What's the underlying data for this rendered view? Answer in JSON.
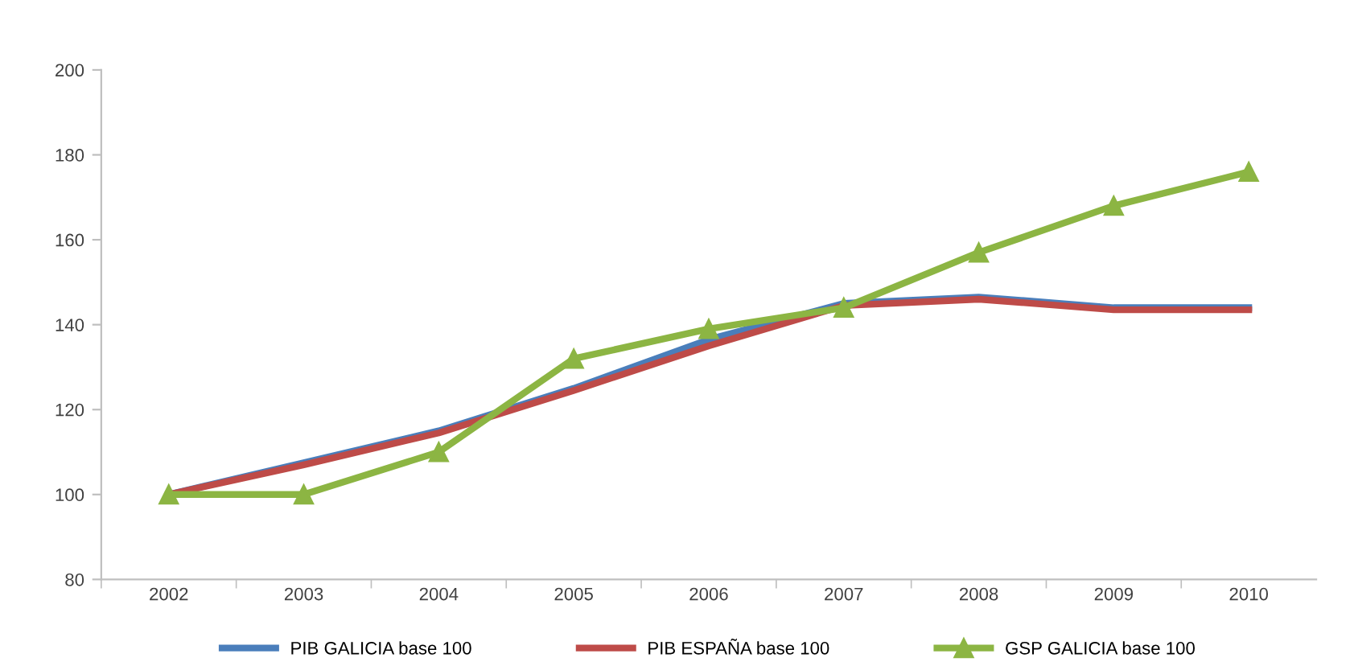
{
  "chart_data": {
    "type": "line",
    "categories": [
      "2002",
      "2003",
      "2004",
      "2005",
      "2006",
      "2007",
      "2008",
      "2009",
      "2010"
    ],
    "series": [
      {
        "name": "PIB GALICIA base 100",
        "color": "#4a7ebb",
        "marker": "none",
        "values": [
          100,
          107.5,
          115,
          125,
          136.5,
          145,
          146.5,
          144,
          144
        ]
      },
      {
        "name": "PIB ESPAÑA base 100",
        "color": "#be4b48",
        "marker": "none",
        "values": [
          100,
          107,
          114.5,
          124.5,
          135,
          144.5,
          146,
          143.5,
          143.5
        ]
      },
      {
        "name": "GSP GALICIA base 100",
        "color": "#8cb543",
        "marker": "triangle",
        "values": [
          100,
          100,
          110,
          132,
          139,
          144,
          157,
          168,
          176
        ]
      }
    ],
    "ylim": [
      80,
      200
    ],
    "yticks": [
      80,
      100,
      120,
      140,
      160,
      180,
      200
    ],
    "grid": false,
    "legend": "bottom"
  }
}
